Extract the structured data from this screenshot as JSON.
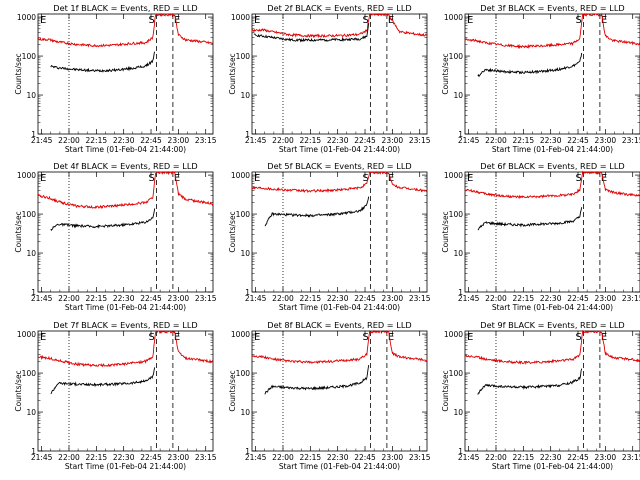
{
  "figure": {
    "x_tick_labels": [
      "21:45",
      "22:00",
      "22:15",
      "22:30",
      "22:45",
      "23:00",
      "23:15"
    ],
    "y_tick_labels": [
      "1",
      "10",
      "100",
      "1000"
    ],
    "ylabel": "Counts/sec",
    "xlabel": "Start Time (01-Feb-04 21:44:00)",
    "marker_labels": {
      "E": "E",
      "S": "S",
      "F": "E"
    },
    "colors": {
      "events": "#000000",
      "lld": "#e00000"
    }
  },
  "chart_data": [
    {
      "type": "line",
      "title": "Det 1f BLACK = Events, RED = LLD",
      "x_domain_min": [
        -1,
        95
      ],
      "ylim": [
        1,
        1200
      ],
      "yscale": "log",
      "markers": {
        "dotted": 16,
        "dashed_S": 64,
        "dashed_E": 73
      },
      "series": [
        {
          "name": "Events",
          "color": "#000000",
          "points": [
            [
              6,
              55
            ],
            [
              10,
              50
            ],
            [
              20,
              45
            ],
            [
              30,
              42
            ],
            [
              40,
              43
            ],
            [
              50,
              48
            ],
            [
              58,
              55
            ],
            [
              62,
              75
            ],
            [
              63,
              130
            ]
          ]
        },
        {
          "name": "LLD",
          "color": "#e00000",
          "points": [
            [
              -1,
              270
            ],
            [
              5,
              265
            ],
            [
              10,
              230
            ],
            [
              20,
              200
            ],
            [
              30,
              185
            ],
            [
              40,
              190
            ],
            [
              50,
              210
            ],
            [
              58,
              220
            ],
            [
              62,
              300
            ],
            [
              63.5,
              1150
            ],
            [
              74,
              1150
            ],
            [
              76,
              350
            ],
            [
              80,
              260
            ],
            [
              90,
              230
            ],
            [
              95,
              210
            ]
          ]
        }
      ]
    },
    {
      "type": "line",
      "title": "Det 2f BLACK = Events, RED = LLD",
      "x_domain_min": [
        -1,
        95
      ],
      "ylim": [
        1,
        1200
      ],
      "yscale": "log",
      "markers": {
        "dotted": 16,
        "dashed_S": 64,
        "dashed_E": 73
      },
      "series": [
        {
          "name": "Events",
          "color": "#000000",
          "points": [
            [
              0,
              350
            ],
            [
              10,
              300
            ],
            [
              20,
              260
            ],
            [
              30,
              255
            ],
            [
              40,
              260
            ],
            [
              50,
              265
            ],
            [
              58,
              275
            ],
            [
              62,
              320
            ],
            [
              63,
              700
            ]
          ]
        },
        {
          "name": "LLD",
          "color": "#e00000",
          "points": [
            [
              -1,
              450
            ],
            [
              5,
              470
            ],
            [
              10,
              420
            ],
            [
              20,
              350
            ],
            [
              30,
              330
            ],
            [
              40,
              330
            ],
            [
              50,
              340
            ],
            [
              58,
              360
            ],
            [
              62,
              450
            ],
            [
              63.5,
              1150
            ],
            [
              74,
              1150
            ],
            [
              76,
              800
            ],
            [
              80,
              420
            ],
            [
              90,
              360
            ],
            [
              95,
              340
            ]
          ]
        }
      ]
    },
    {
      "type": "line",
      "title": "Det 3f BLACK = Events, RED = LLD",
      "x_domain_min": [
        -1,
        95
      ],
      "ylim": [
        1,
        1200
      ],
      "yscale": "log",
      "markers": {
        "dotted": 16,
        "dashed_S": 64,
        "dashed_E": 73
      },
      "series": [
        {
          "name": "Events",
          "color": "#000000",
          "points": [
            [
              6,
              30
            ],
            [
              10,
              45
            ],
            [
              20,
              40
            ],
            [
              30,
              38
            ],
            [
              40,
              40
            ],
            [
              50,
              45
            ],
            [
              58,
              55
            ],
            [
              62,
              70
            ],
            [
              63,
              120
            ]
          ]
        },
        {
          "name": "LLD",
          "color": "#e00000",
          "points": [
            [
              -1,
              260
            ],
            [
              5,
              250
            ],
            [
              10,
              220
            ],
            [
              20,
              190
            ],
            [
              30,
              175
            ],
            [
              40,
              180
            ],
            [
              50,
              195
            ],
            [
              58,
              210
            ],
            [
              62,
              280
            ],
            [
              63.5,
              1150
            ],
            [
              74,
              1150
            ],
            [
              76,
              330
            ],
            [
              80,
              250
            ],
            [
              90,
              220
            ],
            [
              95,
              200
            ]
          ]
        }
      ]
    },
    {
      "type": "line",
      "title": "Det 4f BLACK = Events, RED = LLD",
      "x_domain_min": [
        -1,
        95
      ],
      "ylim": [
        1,
        1200
      ],
      "yscale": "log",
      "markers": {
        "dotted": 16,
        "dashed_S": 64,
        "dashed_E": 73
      },
      "series": [
        {
          "name": "Events",
          "color": "#000000",
          "points": [
            [
              6,
              40
            ],
            [
              10,
              55
            ],
            [
              20,
              50
            ],
            [
              30,
              48
            ],
            [
              40,
              50
            ],
            [
              50,
              55
            ],
            [
              58,
              62
            ],
            [
              62,
              80
            ],
            [
              63,
              140
            ]
          ]
        },
        {
          "name": "LLD",
          "color": "#e00000",
          "points": [
            [
              -1,
              300
            ],
            [
              5,
              260
            ],
            [
              10,
              210
            ],
            [
              20,
              160
            ],
            [
              30,
              150
            ],
            [
              40,
              160
            ],
            [
              50,
              180
            ],
            [
              58,
              200
            ],
            [
              62,
              270
            ],
            [
              63.5,
              1150
            ],
            [
              74,
              1150
            ],
            [
              76,
              330
            ],
            [
              80,
              240
            ],
            [
              90,
              200
            ],
            [
              95,
              180
            ]
          ]
        }
      ]
    },
    {
      "type": "line",
      "title": "Det 5f BLACK = Events, RED = LLD",
      "x_domain_min": [
        -1,
        95
      ],
      "ylim": [
        1,
        1200
      ],
      "yscale": "log",
      "markers": {
        "dotted": 16,
        "dashed_S": 64,
        "dashed_E": 73
      },
      "series": [
        {
          "name": "Events",
          "color": "#000000",
          "points": [
            [
              6,
              50
            ],
            [
              10,
              100
            ],
            [
              20,
              95
            ],
            [
              30,
              92
            ],
            [
              40,
              95
            ],
            [
              50,
              105
            ],
            [
              58,
              120
            ],
            [
              62,
              170
            ],
            [
              63,
              280
            ]
          ]
        },
        {
          "name": "LLD",
          "color": "#e00000",
          "points": [
            [
              -1,
              480
            ],
            [
              5,
              470
            ],
            [
              10,
              440
            ],
            [
              20,
              410
            ],
            [
              30,
              390
            ],
            [
              40,
              400
            ],
            [
              50,
              430
            ],
            [
              58,
              470
            ],
            [
              62,
              600
            ],
            [
              63.5,
              1150
            ],
            [
              74,
              1150
            ],
            [
              76,
              560
            ],
            [
              80,
              480
            ],
            [
              90,
              420
            ],
            [
              95,
              390
            ]
          ]
        }
      ]
    },
    {
      "type": "line",
      "title": "Det 6f BLACK = Events, RED = LLD",
      "x_domain_min": [
        -1,
        95
      ],
      "ylim": [
        1,
        1200
      ],
      "yscale": "log",
      "markers": {
        "dotted": 16,
        "dashed_S": 64,
        "dashed_E": 73
      },
      "series": [
        {
          "name": "Events",
          "color": "#000000",
          "points": [
            [
              6,
              40
            ],
            [
              10,
              60
            ],
            [
              20,
              55
            ],
            [
              30,
              52
            ],
            [
              40,
              55
            ],
            [
              50,
              58
            ],
            [
              58,
              65
            ],
            [
              62,
              85
            ],
            [
              63,
              150
            ]
          ]
        },
        {
          "name": "LLD",
          "color": "#e00000",
          "points": [
            [
              -1,
              420
            ],
            [
              5,
              380
            ],
            [
              10,
              330
            ],
            [
              20,
              290
            ],
            [
              30,
              270
            ],
            [
              40,
              280
            ],
            [
              50,
              300
            ],
            [
              58,
              320
            ],
            [
              62,
              420
            ],
            [
              63.5,
              1150
            ],
            [
              74,
              1150
            ],
            [
              76,
              420
            ],
            [
              80,
              360
            ],
            [
              90,
              310
            ],
            [
              95,
              290
            ]
          ]
        }
      ]
    },
    {
      "type": "line",
      "title": "Det 7f BLACK = Events, RED = LLD",
      "x_domain_min": [
        -1,
        95
      ],
      "ylim": [
        1,
        1200
      ],
      "yscale": "log",
      "markers": {
        "dotted": 16,
        "dashed_S": 64,
        "dashed_E": 73
      },
      "series": [
        {
          "name": "Events",
          "color": "#000000",
          "points": [
            [
              6,
              30
            ],
            [
              10,
              55
            ],
            [
              20,
              52
            ],
            [
              30,
              50
            ],
            [
              40,
              52
            ],
            [
              50,
              55
            ],
            [
              58,
              62
            ],
            [
              62,
              80
            ],
            [
              63,
              140
            ]
          ]
        },
        {
          "name": "LLD",
          "color": "#e00000",
          "points": [
            [
              -1,
              260
            ],
            [
              5,
              240
            ],
            [
              10,
              210
            ],
            [
              20,
              170
            ],
            [
              30,
              155
            ],
            [
              40,
              160
            ],
            [
              50,
              180
            ],
            [
              58,
              200
            ],
            [
              62,
              260
            ],
            [
              63.5,
              1150
            ],
            [
              74,
              1150
            ],
            [
              76,
              340
            ],
            [
              80,
              240
            ],
            [
              90,
              210
            ],
            [
              95,
              195
            ]
          ]
        }
      ]
    },
    {
      "type": "line",
      "title": "Det 8f BLACK = Events, RED = LLD",
      "x_domain_min": [
        -1,
        95
      ],
      "ylim": [
        1,
        1200
      ],
      "yscale": "log",
      "markers": {
        "dotted": 16,
        "dashed_S": 64,
        "dashed_E": 73
      },
      "series": [
        {
          "name": "Events",
          "color": "#000000",
          "points": [
            [
              6,
              30
            ],
            [
              10,
              45
            ],
            [
              20,
              42
            ],
            [
              30,
              40
            ],
            [
              40,
              42
            ],
            [
              50,
              46
            ],
            [
              58,
              55
            ],
            [
              62,
              75
            ],
            [
              63,
              160
            ]
          ]
        },
        {
          "name": "LLD",
          "color": "#e00000",
          "points": [
            [
              -1,
              280
            ],
            [
              5,
              260
            ],
            [
              10,
              230
            ],
            [
              20,
              200
            ],
            [
              30,
              190
            ],
            [
              40,
              195
            ],
            [
              50,
              210
            ],
            [
              58,
              230
            ],
            [
              62,
              300
            ],
            [
              63.5,
              1150
            ],
            [
              74,
              1150
            ],
            [
              76,
              320
            ],
            [
              80,
              260
            ],
            [
              90,
              230
            ],
            [
              95,
              210
            ]
          ]
        }
      ]
    },
    {
      "type": "line",
      "title": "Det 9f BLACK = Events, RED = LLD",
      "x_domain_min": [
        -1,
        95
      ],
      "ylim": [
        1,
        1200
      ],
      "yscale": "log",
      "markers": {
        "dotted": 16,
        "dashed_S": 64,
        "dashed_E": 73
      },
      "series": [
        {
          "name": "Events",
          "color": "#000000",
          "points": [
            [
              6,
              30
            ],
            [
              10,
              48
            ],
            [
              20,
              45
            ],
            [
              30,
              43
            ],
            [
              40,
              45
            ],
            [
              50,
              48
            ],
            [
              58,
              58
            ],
            [
              62,
              75
            ],
            [
              63,
              130
            ]
          ]
        },
        {
          "name": "LLD",
          "color": "#e00000",
          "points": [
            [
              -1,
              280
            ],
            [
              5,
              260
            ],
            [
              10,
              230
            ],
            [
              20,
              200
            ],
            [
              30,
              185
            ],
            [
              40,
              190
            ],
            [
              50,
              205
            ],
            [
              58,
              225
            ],
            [
              62,
              290
            ],
            [
              63.5,
              1150
            ],
            [
              74,
              1150
            ],
            [
              76,
              320
            ],
            [
              80,
              250
            ],
            [
              90,
              225
            ],
            [
              95,
              205
            ]
          ]
        }
      ]
    }
  ]
}
